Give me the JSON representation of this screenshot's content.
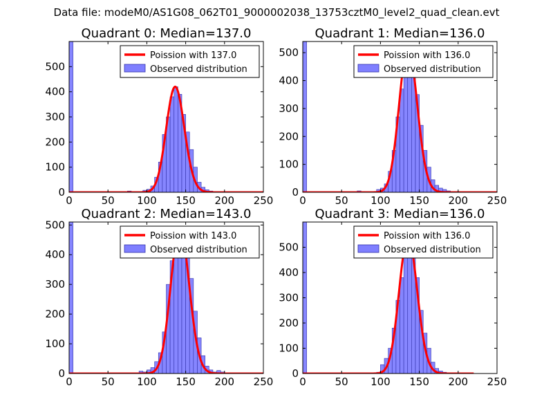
{
  "figure_title": "Data file: modeM0/AS1G08_062T01_9000002038_13753cztM0_level2_quad_clean.evt",
  "colors": {
    "fit_line": "#ff0000",
    "bar_fill": "#7f7fff",
    "bar_edge": "#3333aa",
    "axes": "#000000"
  },
  "chart_data": [
    {
      "type": "bar",
      "title": "Quadrant 0: Median=137.0",
      "xlim": [
        0,
        250
      ],
      "ylim": [
        0,
        600
      ],
      "xticks": [
        0,
        50,
        100,
        150,
        200,
        250
      ],
      "yticks": [
        0,
        100,
        200,
        300,
        400,
        500
      ],
      "legend": [
        "Poission with 137.0",
        "Observed distribution"
      ],
      "legend_position": "top-right",
      "bin_width": 5,
      "bins": [
        [
          0,
          600
        ],
        [
          75,
          5
        ],
        [
          80,
          3
        ],
        [
          90,
          3
        ],
        [
          95,
          8
        ],
        [
          100,
          12
        ],
        [
          105,
          25
        ],
        [
          110,
          60
        ],
        [
          115,
          120
        ],
        [
          120,
          230
        ],
        [
          125,
          300
        ],
        [
          130,
          380
        ],
        [
          135,
          420
        ],
        [
          140,
          390
        ],
        [
          145,
          310
        ],
        [
          150,
          240
        ],
        [
          155,
          170
        ],
        [
          160,
          100
        ],
        [
          165,
          40
        ],
        [
          170,
          20
        ],
        [
          175,
          10
        ],
        [
          180,
          5
        ]
      ],
      "fit_median": 137.0,
      "fit_range": [
        0,
        250
      ]
    },
    {
      "type": "bar",
      "title": "Quadrant 1: Median=136.0",
      "xlim": [
        0,
        250
      ],
      "ylim": [
        0,
        540
      ],
      "xticks": [
        0,
        50,
        100,
        150,
        200,
        250
      ],
      "yticks": [
        0,
        100,
        200,
        300,
        400,
        500
      ],
      "legend": [
        "Poission with 136.0",
        "Observed distribution"
      ],
      "legend_position": "top-right",
      "bin_width": 5,
      "bins": [
        [
          0,
          540
        ],
        [
          70,
          5
        ],
        [
          75,
          3
        ],
        [
          95,
          10
        ],
        [
          100,
          15
        ],
        [
          105,
          30
        ],
        [
          110,
          75
        ],
        [
          115,
          150
        ],
        [
          120,
          270
        ],
        [
          125,
          370
        ],
        [
          130,
          470
        ],
        [
          135,
          520
        ],
        [
          140,
          440
        ],
        [
          145,
          350
        ],
        [
          150,
          240
        ],
        [
          155,
          150
        ],
        [
          160,
          90
        ],
        [
          165,
          45
        ],
        [
          170,
          25
        ],
        [
          175,
          15
        ],
        [
          180,
          10
        ],
        [
          185,
          5
        ]
      ],
      "fit_median": 136.0,
      "fit_range": [
        0,
        250
      ]
    },
    {
      "type": "bar",
      "title": "Quadrant 2: Median=143.0",
      "xlim": [
        0,
        250
      ],
      "ylim": [
        0,
        510
      ],
      "xticks": [
        0,
        50,
        100,
        150,
        200,
        250
      ],
      "yticks": [
        0,
        100,
        200,
        300,
        400,
        500
      ],
      "legend": [
        "Poission with 143.0",
        "Observed distribution"
      ],
      "legend_position": "top-right",
      "bin_width": 5,
      "bins": [
        [
          0,
          510
        ],
        [
          90,
          8
        ],
        [
          95,
          5
        ],
        [
          100,
          12
        ],
        [
          105,
          20
        ],
        [
          110,
          40
        ],
        [
          115,
          70
        ],
        [
          120,
          140
        ],
        [
          125,
          300
        ],
        [
          130,
          380
        ],
        [
          135,
          450
        ],
        [
          140,
          490
        ],
        [
          145,
          480
        ],
        [
          150,
          420
        ],
        [
          155,
          320
        ],
        [
          160,
          210
        ],
        [
          165,
          120
        ],
        [
          170,
          60
        ],
        [
          175,
          25
        ],
        [
          180,
          12
        ],
        [
          185,
          5
        ],
        [
          190,
          10
        ],
        [
          195,
          5
        ]
      ],
      "fit_median": 143.0,
      "fit_range": [
        0,
        250
      ]
    },
    {
      "type": "bar",
      "title": "Quadrant 3: Median=136.0",
      "xlim": [
        0,
        250
      ],
      "ylim": [
        0,
        600
      ],
      "xticks": [
        0,
        50,
        100,
        150,
        200,
        250
      ],
      "yticks": [
        0,
        100,
        200,
        300,
        400,
        500
      ],
      "legend": [
        "Poission with 136.0",
        "Observed distribution"
      ],
      "legend_position": "top-right",
      "bin_width": 5,
      "bins": [
        [
          0,
          600
        ],
        [
          95,
          5
        ],
        [
          100,
          35
        ],
        [
          105,
          60
        ],
        [
          110,
          100
        ],
        [
          115,
          180
        ],
        [
          120,
          290
        ],
        [
          125,
          380
        ],
        [
          130,
          490
        ],
        [
          135,
          540
        ],
        [
          140,
          490
        ],
        [
          145,
          380
        ],
        [
          150,
          250
        ],
        [
          155,
          160
        ],
        [
          160,
          100
        ],
        [
          165,
          45
        ],
        [
          170,
          20
        ],
        [
          175,
          10
        ],
        [
          180,
          5
        ]
      ],
      "fit_median": 136.0,
      "fit_range": [
        0,
        220
      ]
    }
  ]
}
